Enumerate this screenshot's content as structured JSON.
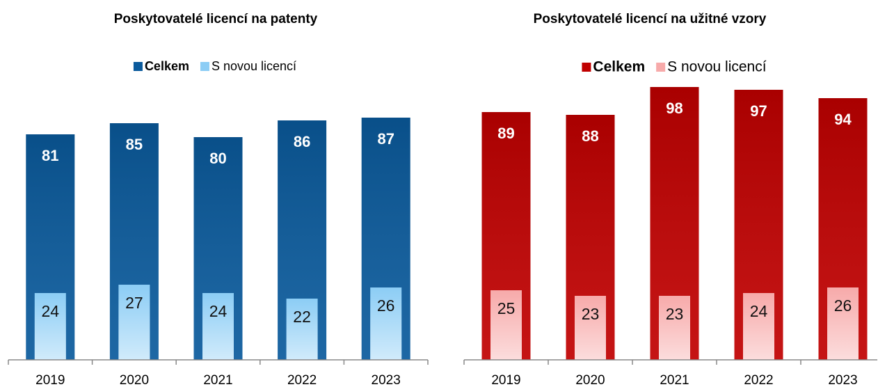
{
  "chart_data": [
    {
      "type": "bar",
      "title": "Poskytovatelé licencí na patenty",
      "categories": [
        "2019",
        "2020",
        "2021",
        "2022",
        "2023"
      ],
      "series": [
        {
          "name": "Celkem",
          "color": "#0a5a9c",
          "values": [
            81,
            85,
            80,
            86,
            87
          ]
        },
        {
          "name": "S novou licencí",
          "color": "#8ccdf5",
          "values": [
            24,
            27,
            24,
            22,
            26
          ]
        }
      ],
      "ylim": [
        0,
        100
      ]
    },
    {
      "type": "bar",
      "title": "Poskytovatelé licencí na užitné vzory",
      "categories": [
        "2019",
        "2020",
        "2021",
        "2022",
        "2023"
      ],
      "series": [
        {
          "name": "Celkem",
          "color": "#c00000",
          "values": [
            89,
            88,
            98,
            97,
            94
          ]
        },
        {
          "name": "S novou licencí",
          "color": "#f7aaaa",
          "values": [
            25,
            23,
            23,
            24,
            26
          ]
        }
      ],
      "ylim": [
        0,
        100
      ]
    }
  ]
}
